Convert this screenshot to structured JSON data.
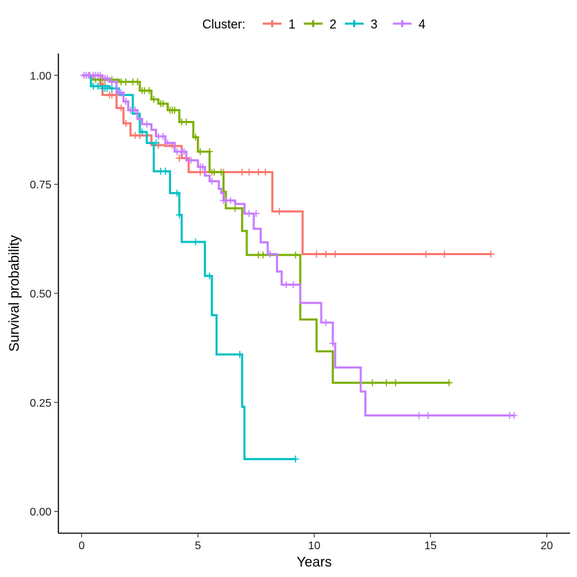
{
  "chart_data": {
    "type": "line",
    "subtype": "kaplan-meier",
    "title": "",
    "xlabel": "Years",
    "ylabel": "Survival probability",
    "xlim": [
      -1,
      21
    ],
    "ylim": [
      -0.05,
      1.05
    ],
    "x_ticks": [
      0,
      5,
      10,
      15,
      20
    ],
    "x_tick_labels": [
      "0",
      "5",
      "10",
      "15",
      "20"
    ],
    "y_ticks": [
      0,
      0.25,
      0.5,
      0.75,
      1.0
    ],
    "y_tick_labels": [
      "0.00",
      "0.25",
      "0.50",
      "0.75",
      "1.00"
    ],
    "grid": false,
    "legend": {
      "title": "Cluster:",
      "position": "top-center",
      "labels": [
        "1",
        "2",
        "3",
        "4"
      ]
    },
    "series": [
      {
        "name": "1",
        "color": "#F8766D",
        "steps": [
          [
            0,
            1.0
          ],
          [
            0.8,
            0.98
          ],
          [
            0.9,
            0.955
          ],
          [
            1.5,
            0.925
          ],
          [
            1.8,
            0.89
          ],
          [
            2.1,
            0.862
          ],
          [
            3.0,
            0.84
          ],
          [
            3.6,
            0.838
          ],
          [
            4.3,
            0.81
          ],
          [
            4.6,
            0.778
          ],
          [
            8.2,
            0.688
          ],
          [
            9.5,
            0.59
          ],
          [
            17.6,
            0.59
          ]
        ],
        "censored": [
          [
            0.3,
            1.0
          ],
          [
            0.5,
            1.0
          ],
          [
            0.9,
            0.98
          ],
          [
            1.2,
            0.955
          ],
          [
            1.3,
            0.955
          ],
          [
            1.7,
            0.925
          ],
          [
            1.9,
            0.89
          ],
          [
            2.3,
            0.862
          ],
          [
            2.5,
            0.862
          ],
          [
            2.8,
            0.862
          ],
          [
            3.3,
            0.84
          ],
          [
            3.9,
            0.84
          ],
          [
            4.2,
            0.81
          ],
          [
            4.5,
            0.81
          ],
          [
            5.1,
            0.778
          ],
          [
            5.6,
            0.778
          ],
          [
            6.1,
            0.778
          ],
          [
            6.9,
            0.778
          ],
          [
            7.2,
            0.778
          ],
          [
            7.6,
            0.778
          ],
          [
            7.9,
            0.778
          ],
          [
            8.5,
            0.688
          ],
          [
            10.1,
            0.59
          ],
          [
            10.5,
            0.59
          ],
          [
            10.9,
            0.59
          ],
          [
            14.8,
            0.59
          ],
          [
            15.6,
            0.59
          ],
          [
            17.6,
            0.59
          ]
        ]
      },
      {
        "name": "2",
        "color": "#7CAE00",
        "steps": [
          [
            0,
            1.0
          ],
          [
            0.5,
            0.99
          ],
          [
            1.6,
            0.985
          ],
          [
            2.5,
            0.965
          ],
          [
            3.0,
            0.945
          ],
          [
            3.3,
            0.935
          ],
          [
            3.7,
            0.92
          ],
          [
            4.2,
            0.893
          ],
          [
            4.8,
            0.858
          ],
          [
            5.0,
            0.825
          ],
          [
            5.5,
            0.778
          ],
          [
            6.1,
            0.733
          ],
          [
            6.2,
            0.695
          ],
          [
            6.9,
            0.643
          ],
          [
            7.1,
            0.588
          ],
          [
            9.4,
            0.44
          ],
          [
            10.1,
            0.367
          ],
          [
            10.8,
            0.295
          ],
          [
            15.8,
            0.295
          ]
        ],
        "censored": [
          [
            0.6,
            0.99
          ],
          [
            0.8,
            0.99
          ],
          [
            1.0,
            0.99
          ],
          [
            1.3,
            0.99
          ],
          [
            1.7,
            0.985
          ],
          [
            1.9,
            0.985
          ],
          [
            2.2,
            0.985
          ],
          [
            2.4,
            0.985
          ],
          [
            2.6,
            0.965
          ],
          [
            2.7,
            0.965
          ],
          [
            2.9,
            0.965
          ],
          [
            3.1,
            0.945
          ],
          [
            3.4,
            0.935
          ],
          [
            3.5,
            0.935
          ],
          [
            3.8,
            0.92
          ],
          [
            3.9,
            0.92
          ],
          [
            4.0,
            0.92
          ],
          [
            4.3,
            0.893
          ],
          [
            4.5,
            0.893
          ],
          [
            4.9,
            0.858
          ],
          [
            5.1,
            0.825
          ],
          [
            5.5,
            0.825
          ],
          [
            5.7,
            0.778
          ],
          [
            6.0,
            0.778
          ],
          [
            6.6,
            0.695
          ],
          [
            7.6,
            0.588
          ],
          [
            7.8,
            0.588
          ],
          [
            9.2,
            0.588
          ],
          [
            12.5,
            0.295
          ],
          [
            13.1,
            0.295
          ],
          [
            13.5,
            0.295
          ],
          [
            15.8,
            0.295
          ]
        ]
      },
      {
        "name": "3",
        "color": "#00BFC4",
        "steps": [
          [
            0,
            1.0
          ],
          [
            0.4,
            0.975
          ],
          [
            1.2,
            0.97
          ],
          [
            1.6,
            0.955
          ],
          [
            2.2,
            0.912
          ],
          [
            2.5,
            0.87
          ],
          [
            2.8,
            0.845
          ],
          [
            3.1,
            0.78
          ],
          [
            3.8,
            0.73
          ],
          [
            4.2,
            0.68
          ],
          [
            4.3,
            0.618
          ],
          [
            5.3,
            0.54
          ],
          [
            5.6,
            0.45
          ],
          [
            5.8,
            0.36
          ],
          [
            6.9,
            0.24
          ],
          [
            7.0,
            0.12
          ],
          [
            9.2,
            0.12
          ]
        ],
        "censored": [
          [
            0.5,
            0.975
          ],
          [
            0.7,
            0.975
          ],
          [
            0.9,
            0.97
          ],
          [
            1.0,
            0.97
          ],
          [
            1.1,
            0.97
          ],
          [
            1.3,
            0.97
          ],
          [
            1.5,
            0.97
          ],
          [
            1.8,
            0.955
          ],
          [
            2.6,
            0.87
          ],
          [
            3.2,
            0.845
          ],
          [
            3.4,
            0.78
          ],
          [
            3.6,
            0.78
          ],
          [
            4.1,
            0.73
          ],
          [
            4.2,
            0.68
          ],
          [
            4.9,
            0.618
          ],
          [
            5.5,
            0.54
          ],
          [
            6.8,
            0.36
          ],
          [
            9.2,
            0.12
          ]
        ]
      },
      {
        "name": "4",
        "color": "#C77CFF",
        "steps": [
          [
            0,
            1.0
          ],
          [
            0.9,
            0.993
          ],
          [
            1.2,
            0.985
          ],
          [
            1.5,
            0.96
          ],
          [
            1.8,
            0.94
          ],
          [
            2.0,
            0.92
          ],
          [
            2.4,
            0.9
          ],
          [
            2.6,
            0.888
          ],
          [
            3.0,
            0.875
          ],
          [
            3.2,
            0.86
          ],
          [
            3.6,
            0.845
          ],
          [
            4.0,
            0.825
          ],
          [
            4.5,
            0.805
          ],
          [
            5.0,
            0.79
          ],
          [
            5.3,
            0.77
          ],
          [
            5.5,
            0.757
          ],
          [
            5.9,
            0.74
          ],
          [
            6.0,
            0.73
          ],
          [
            6.1,
            0.713
          ],
          [
            6.6,
            0.705
          ],
          [
            7.0,
            0.683
          ],
          [
            7.4,
            0.648
          ],
          [
            7.7,
            0.617
          ],
          [
            8.0,
            0.59
          ],
          [
            8.4,
            0.55
          ],
          [
            8.6,
            0.52
          ],
          [
            9.4,
            0.478
          ],
          [
            10.3,
            0.433
          ],
          [
            10.8,
            0.385
          ],
          [
            10.9,
            0.33
          ],
          [
            12.0,
            0.275
          ],
          [
            12.2,
            0.22
          ],
          [
            18.6,
            0.22
          ]
        ],
        "censored": [
          [
            0.1,
            1.0
          ],
          [
            0.2,
            1.0
          ],
          [
            0.3,
            1.0
          ],
          [
            0.35,
            1.0
          ],
          [
            0.5,
            1.0
          ],
          [
            0.6,
            1.0
          ],
          [
            0.7,
            1.0
          ],
          [
            0.8,
            1.0
          ],
          [
            1.0,
            0.993
          ],
          [
            1.1,
            0.993
          ],
          [
            1.3,
            0.985
          ],
          [
            1.6,
            0.96
          ],
          [
            1.7,
            0.96
          ],
          [
            1.9,
            0.94
          ],
          [
            2.1,
            0.92
          ],
          [
            2.3,
            0.92
          ],
          [
            2.8,
            0.888
          ],
          [
            3.3,
            0.86
          ],
          [
            3.5,
            0.86
          ],
          [
            3.7,
            0.845
          ],
          [
            4.1,
            0.825
          ],
          [
            4.3,
            0.825
          ],
          [
            4.4,
            0.825
          ],
          [
            4.7,
            0.805
          ],
          [
            5.1,
            0.79
          ],
          [
            5.2,
            0.79
          ],
          [
            5.6,
            0.757
          ],
          [
            6.1,
            0.713
          ],
          [
            6.2,
            0.713
          ],
          [
            6.4,
            0.713
          ],
          [
            7.2,
            0.683
          ],
          [
            7.5,
            0.683
          ],
          [
            8.1,
            0.59
          ],
          [
            8.8,
            0.52
          ],
          [
            9.1,
            0.52
          ],
          [
            10.5,
            0.433
          ],
          [
            10.8,
            0.385
          ],
          [
            14.5,
            0.22
          ],
          [
            14.9,
            0.22
          ],
          [
            18.4,
            0.22
          ],
          [
            18.6,
            0.22
          ]
        ]
      }
    ]
  }
}
